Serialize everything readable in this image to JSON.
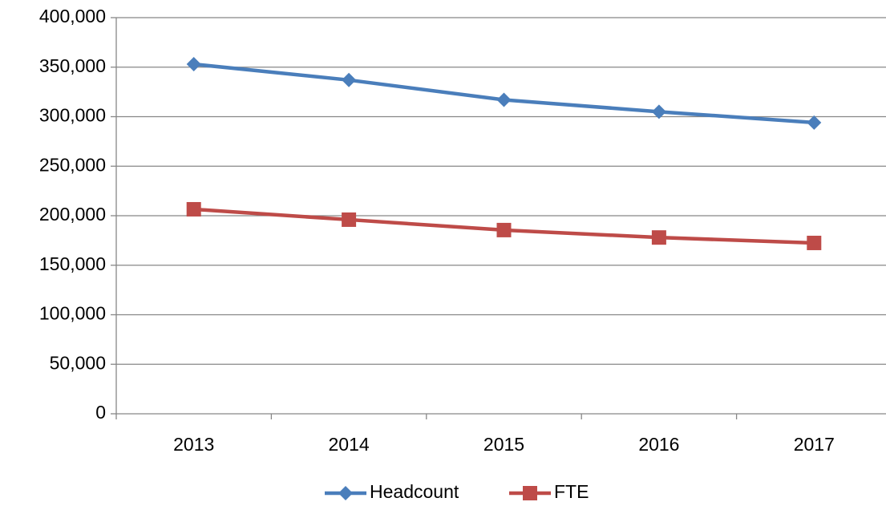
{
  "chart_data": {
    "type": "line",
    "categories": [
      "2013",
      "2014",
      "2015",
      "2016",
      "2017"
    ],
    "series": [
      {
        "name": "Headcount",
        "color": "#4a7ebb",
        "values": [
          353000,
          337000,
          317000,
          305000,
          294000
        ]
      },
      {
        "name": "FTE",
        "color": "#be4b48",
        "values": [
          206500,
          196000,
          185500,
          178000,
          172500
        ]
      }
    ],
    "ylim": [
      0,
      400000
    ],
    "yticks": [
      0,
      {
        "value": 50000,
        "label": "50,000"
      },
      {
        "value": 100000,
        "label": "100,000"
      },
      {
        "value": 150000,
        "label": "150,000"
      },
      {
        "value": 200000,
        "label": "200,000"
      },
      {
        "value": 250000,
        "label": "250,000"
      },
      {
        "value": 300000,
        "label": "300,000"
      },
      {
        "value": 350000,
        "label": "350,000"
      },
      {
        "value": 400000,
        "label": "400,000"
      }
    ],
    "grid": true,
    "legend": "bottom"
  }
}
